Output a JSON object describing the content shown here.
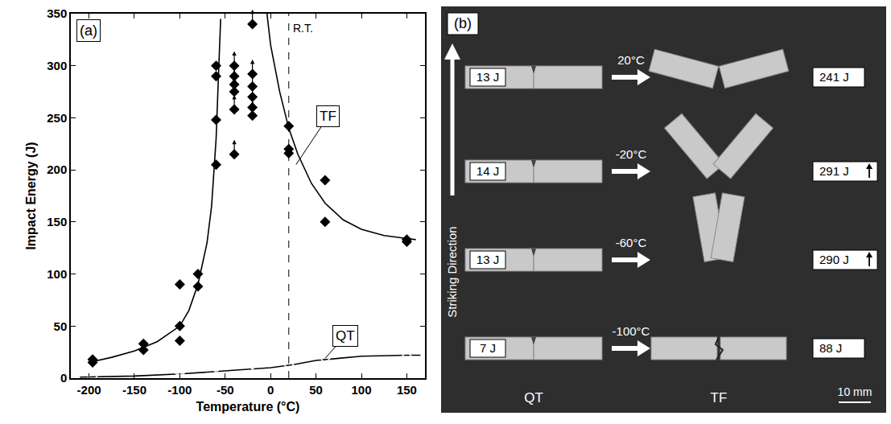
{
  "chart_data": {
    "type": "scatter",
    "panel_label": "(a)",
    "x_label": "Temperature (°C)",
    "y_label": "Impact Energy (J)",
    "xlim": [
      -220,
      170
    ],
    "xticks": [
      -200,
      -150,
      -100,
      -50,
      0,
      50,
      100,
      150
    ],
    "ylim": [
      0,
      350
    ],
    "yticks": [
      0,
      50,
      100,
      150,
      200,
      250,
      300,
      350
    ],
    "grid": false,
    "reference_line": {
      "x": 20,
      "label": "R.T.",
      "line_style": "dash"
    },
    "series": [
      {
        "name": "TF",
        "marker": "diamond",
        "color": "#000000",
        "x": [
          -196,
          -196,
          -140,
          -140,
          -100,
          -100,
          -100,
          -80,
          -80,
          -60,
          -60,
          -60,
          -60,
          -40,
          -40,
          -40,
          -40,
          -40,
          -40,
          -20,
          -20,
          -20,
          -20,
          -20,
          -20,
          20,
          20,
          20,
          60,
          60,
          150,
          150
        ],
        "values": [
          15,
          18,
          27,
          33,
          90,
          50,
          36,
          88,
          100,
          205,
          248,
          290,
          300,
          215,
          258,
          275,
          282,
          290,
          300,
          340,
          292,
          280,
          270,
          260,
          252,
          242,
          220,
          216,
          190,
          150,
          133,
          131
        ],
        "lower_bound": [
          false,
          false,
          false,
          false,
          false,
          false,
          false,
          false,
          false,
          false,
          false,
          false,
          false,
          true,
          true,
          true,
          true,
          true,
          true,
          true,
          true,
          true,
          true,
          true,
          true,
          false,
          false,
          false,
          false,
          false,
          false,
          false
        ],
        "line_style": "solid",
        "fit_x": [
          -200,
          -175,
          -150,
          -125,
          -100,
          -90,
          -80,
          -70,
          -65,
          -60,
          -57,
          -55,
          -30,
          -4,
          0,
          10,
          20,
          30,
          45,
          60,
          80,
          100,
          125,
          160
        ],
        "fit_values": [
          15,
          20,
          26,
          35,
          50,
          65,
          90,
          130,
          165,
          230,
          300,
          345,
          null,
          350,
          320,
          275,
          240,
          215,
          187,
          168,
          152,
          143,
          137,
          133
        ],
        "label_point": {
          "x": 28,
          "y": 205
        }
      },
      {
        "name": "QT",
        "marker": "diamond-open",
        "color": "#000000",
        "x": [
          -196,
          -100,
          -100,
          -60,
          -60,
          -20,
          20,
          60,
          150
        ],
        "values": [
          2,
          5,
          7,
          10,
          13,
          13,
          13,
          19,
          21
        ],
        "lower_bound": [
          false,
          false,
          false,
          false,
          false,
          false,
          false,
          false,
          false
        ],
        "line_style": "solid",
        "fit_x": [
          -210,
          -150,
          -100,
          -50,
          0,
          25,
          50,
          75,
          100,
          150,
          165
        ],
        "fit_values": [
          1,
          2,
          4,
          7,
          10,
          13,
          17,
          19,
          21,
          22,
          22
        ],
        "label_point": {
          "x": 60,
          "y": 19
        }
      }
    ]
  },
  "photo": {
    "panel_label": "(b)",
    "direction_label": "Striking Direction",
    "left_label": "QT",
    "right_label": "TF",
    "scale_label": "10 mm",
    "rows": [
      {
        "temperature": "20°C",
        "qt_energy": "13 J",
        "tf_energy": "241 J",
        "exceeds": false
      },
      {
        "temperature": "-20°C",
        "qt_energy": "14 J",
        "tf_energy": "291 J",
        "exceeds": true
      },
      {
        "temperature": "-60°C",
        "qt_energy": "13 J",
        "tf_energy": "290 J",
        "exceeds": true
      },
      {
        "temperature": "-100°C",
        "qt_energy": "7 J",
        "tf_energy": "88 J",
        "exceeds": false
      }
    ]
  }
}
